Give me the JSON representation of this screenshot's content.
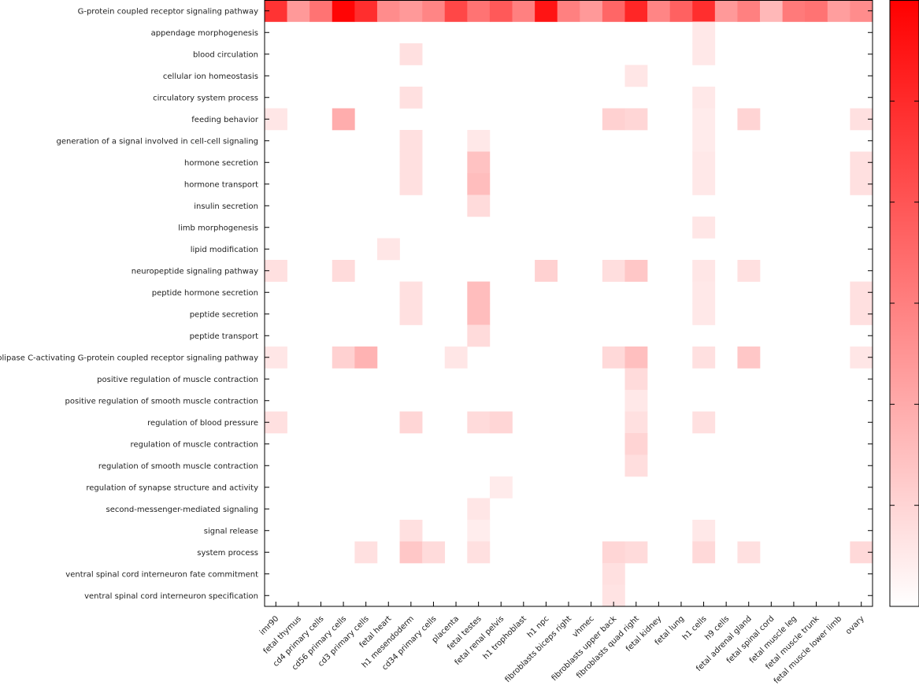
{
  "chart_data": {
    "type": "heatmap",
    "title": "",
    "xlabel": "",
    "ylabel": "",
    "colorscale": {
      "low": "#ffffff",
      "high": "#ff0000"
    },
    "colorbar": true,
    "rows": [
      "G-protein coupled receptor signaling pathway",
      "appendage morphogenesis",
      "blood circulation",
      "cellular ion homeostasis",
      "circulatory system process",
      "feeding behavior",
      "generation of a signal involved in cell-cell signaling",
      "hormone secretion",
      "hormone transport",
      "insulin secretion",
      "limb morphogenesis",
      "lipid modification",
      "neuropeptide signaling pathway",
      "peptide hormone secretion",
      "peptide secretion",
      "peptide transport",
      "phospholipase C-activating G-protein coupled receptor signaling pathway",
      "positive regulation of muscle contraction",
      "positive regulation of smooth muscle contraction",
      "regulation of blood pressure",
      "regulation of muscle contraction",
      "regulation of smooth muscle contraction",
      "regulation of synapse structure and activity",
      "second-messenger-mediated signaling",
      "signal release",
      "system process",
      "ventral spinal cord interneuron fate commitment",
      "ventral spinal cord interneuron specification"
    ],
    "columns": [
      "imr90",
      "fetal thymus",
      "cd4 primary cells",
      "cd56 primary cells",
      "cd3 primary cells",
      "fetal heart",
      "h1 mesendoderm",
      "cd34 primary cells",
      "placenta",
      "fetal testes",
      "fetal renal pelvis",
      "h1 trophoblast",
      "h1 npc",
      "fibroblasts biceps right",
      "vhmec",
      "fibroblasts upper back",
      "fibroblasts quad right",
      "fetal kidney",
      "fetal lung",
      "h1 cells",
      "h9 cells",
      "fetal adrenal gland",
      "fetal spinal cord",
      "fetal muscle leg",
      "fetal muscle trunk",
      "fetal muscle lower limb",
      "ovary"
    ],
    "values": [
      [
        0.8,
        0.4,
        0.55,
        0.98,
        0.82,
        0.45,
        0.4,
        0.48,
        0.72,
        0.55,
        0.65,
        0.5,
        0.92,
        0.5,
        0.4,
        0.6,
        0.85,
        0.48,
        0.62,
        0.82,
        0.4,
        0.5,
        0.28,
        0.52,
        0.55,
        0.38,
        0.45
      ],
      [
        0,
        0,
        0,
        0,
        0,
        0,
        0,
        0,
        0,
        0,
        0,
        0,
        0,
        0,
        0,
        0,
        0,
        0,
        0,
        0.09,
        0,
        0,
        0,
        0,
        0,
        0,
        0
      ],
      [
        0,
        0,
        0,
        0,
        0,
        0,
        0.12,
        0,
        0,
        0,
        0,
        0,
        0,
        0,
        0,
        0,
        0,
        0,
        0,
        0.09,
        0,
        0,
        0,
        0,
        0,
        0,
        0
      ],
      [
        0,
        0,
        0,
        0,
        0,
        0,
        0,
        0,
        0,
        0,
        0,
        0,
        0,
        0,
        0,
        0,
        0.1,
        0,
        0,
        0,
        0,
        0,
        0,
        0,
        0,
        0,
        0
      ],
      [
        0,
        0,
        0,
        0,
        0,
        0,
        0.12,
        0,
        0,
        0,
        0,
        0,
        0,
        0,
        0,
        0,
        0,
        0,
        0,
        0.09,
        0,
        0,
        0,
        0,
        0,
        0,
        0
      ],
      [
        0.1,
        0,
        0,
        0.32,
        0,
        0,
        0,
        0,
        0,
        0,
        0,
        0,
        0,
        0,
        0,
        0.18,
        0.16,
        0,
        0,
        0.08,
        0,
        0.17,
        0,
        0,
        0,
        0,
        0.12
      ],
      [
        0,
        0,
        0,
        0,
        0,
        0,
        0.12,
        0,
        0,
        0.09,
        0,
        0,
        0,
        0,
        0,
        0,
        0,
        0,
        0,
        0.08,
        0,
        0,
        0,
        0,
        0,
        0,
        0
      ],
      [
        0,
        0,
        0,
        0,
        0,
        0,
        0.12,
        0,
        0,
        0.24,
        0,
        0,
        0,
        0,
        0,
        0,
        0,
        0,
        0,
        0.09,
        0,
        0,
        0,
        0,
        0,
        0,
        0.12
      ],
      [
        0,
        0,
        0,
        0,
        0,
        0,
        0.12,
        0,
        0,
        0.26,
        0,
        0,
        0,
        0,
        0,
        0,
        0,
        0,
        0,
        0.09,
        0,
        0,
        0,
        0,
        0,
        0,
        0.12
      ],
      [
        0,
        0,
        0,
        0,
        0,
        0,
        0,
        0,
        0,
        0.14,
        0,
        0,
        0,
        0,
        0,
        0,
        0,
        0,
        0,
        0,
        0,
        0,
        0,
        0,
        0,
        0,
        0
      ],
      [
        0,
        0,
        0,
        0,
        0,
        0,
        0,
        0,
        0,
        0,
        0,
        0,
        0,
        0,
        0,
        0,
        0,
        0,
        0,
        0.1,
        0,
        0,
        0,
        0,
        0,
        0,
        0
      ],
      [
        0,
        0,
        0,
        0,
        0,
        0.1,
        0,
        0,
        0,
        0,
        0,
        0,
        0,
        0,
        0,
        0,
        0,
        0,
        0,
        0,
        0,
        0,
        0,
        0,
        0,
        0,
        0
      ],
      [
        0.12,
        0,
        0,
        0.14,
        0,
        0,
        0,
        0,
        0,
        0,
        0,
        0,
        0.18,
        0,
        0,
        0.13,
        0.22,
        0,
        0,
        0.1,
        0,
        0.12,
        0,
        0,
        0,
        0,
        0
      ],
      [
        0,
        0,
        0,
        0,
        0,
        0,
        0.12,
        0,
        0,
        0.26,
        0,
        0,
        0,
        0,
        0,
        0,
        0,
        0,
        0,
        0.09,
        0,
        0,
        0,
        0,
        0,
        0,
        0.12
      ],
      [
        0,
        0,
        0,
        0,
        0,
        0,
        0.12,
        0,
        0,
        0.26,
        0,
        0,
        0,
        0,
        0,
        0,
        0,
        0,
        0,
        0.09,
        0,
        0,
        0,
        0,
        0,
        0,
        0.12
      ],
      [
        0,
        0,
        0,
        0,
        0,
        0,
        0,
        0,
        0,
        0.14,
        0,
        0,
        0,
        0,
        0,
        0,
        0,
        0,
        0,
        0,
        0,
        0,
        0,
        0,
        0,
        0,
        0
      ],
      [
        0.1,
        0,
        0,
        0.18,
        0.3,
        0,
        0,
        0,
        0.1,
        0,
        0,
        0,
        0,
        0,
        0,
        0.15,
        0.25,
        0,
        0,
        0.12,
        0,
        0.22,
        0,
        0,
        0,
        0,
        0.1
      ],
      [
        0,
        0,
        0,
        0,
        0,
        0,
        0,
        0,
        0,
        0,
        0,
        0,
        0,
        0,
        0,
        0,
        0.14,
        0,
        0,
        0,
        0,
        0,
        0,
        0,
        0,
        0,
        0
      ],
      [
        0,
        0,
        0,
        0,
        0,
        0,
        0,
        0,
        0,
        0,
        0,
        0,
        0,
        0,
        0,
        0,
        0.09,
        0,
        0,
        0,
        0,
        0,
        0,
        0,
        0,
        0,
        0
      ],
      [
        0.12,
        0,
        0,
        0,
        0,
        0,
        0.16,
        0,
        0,
        0.14,
        0.16,
        0,
        0,
        0,
        0,
        0,
        0.12,
        0,
        0,
        0.12,
        0,
        0,
        0,
        0,
        0,
        0,
        0
      ],
      [
        0,
        0,
        0,
        0,
        0,
        0,
        0,
        0,
        0,
        0,
        0,
        0,
        0,
        0,
        0,
        0,
        0.17,
        0,
        0,
        0,
        0,
        0,
        0,
        0,
        0,
        0,
        0
      ],
      [
        0,
        0,
        0,
        0,
        0,
        0,
        0,
        0,
        0,
        0,
        0,
        0,
        0,
        0,
        0,
        0,
        0.13,
        0,
        0,
        0,
        0,
        0,
        0,
        0,
        0,
        0,
        0
      ],
      [
        0,
        0,
        0,
        0,
        0,
        0,
        0,
        0,
        0,
        0,
        0.08,
        0,
        0,
        0,
        0,
        0,
        0,
        0,
        0,
        0,
        0,
        0,
        0,
        0,
        0,
        0,
        0
      ],
      [
        0,
        0,
        0,
        0,
        0,
        0,
        0,
        0,
        0,
        0.1,
        0,
        0,
        0,
        0,
        0,
        0,
        0,
        0,
        0,
        0,
        0,
        0,
        0,
        0,
        0,
        0,
        0
      ],
      [
        0,
        0,
        0,
        0,
        0,
        0,
        0.12,
        0,
        0,
        0.07,
        0,
        0,
        0,
        0,
        0,
        0,
        0,
        0,
        0,
        0.09,
        0,
        0,
        0,
        0,
        0,
        0,
        0
      ],
      [
        0,
        0,
        0,
        0,
        0.12,
        0,
        0.22,
        0.14,
        0,
        0.12,
        0,
        0,
        0,
        0,
        0,
        0.16,
        0.14,
        0,
        0,
        0.15,
        0,
        0.12,
        0,
        0,
        0,
        0,
        0.15
      ],
      [
        0,
        0,
        0,
        0,
        0,
        0,
        0,
        0,
        0,
        0,
        0,
        0,
        0,
        0,
        0,
        0.12,
        0,
        0,
        0,
        0,
        0,
        0,
        0,
        0,
        0,
        0,
        0
      ],
      [
        0,
        0,
        0,
        0,
        0,
        0,
        0,
        0,
        0,
        0,
        0,
        0,
        0,
        0,
        0,
        0.11,
        0,
        0,
        0,
        0,
        0,
        0,
        0,
        0,
        0,
        0,
        0
      ]
    ]
  }
}
